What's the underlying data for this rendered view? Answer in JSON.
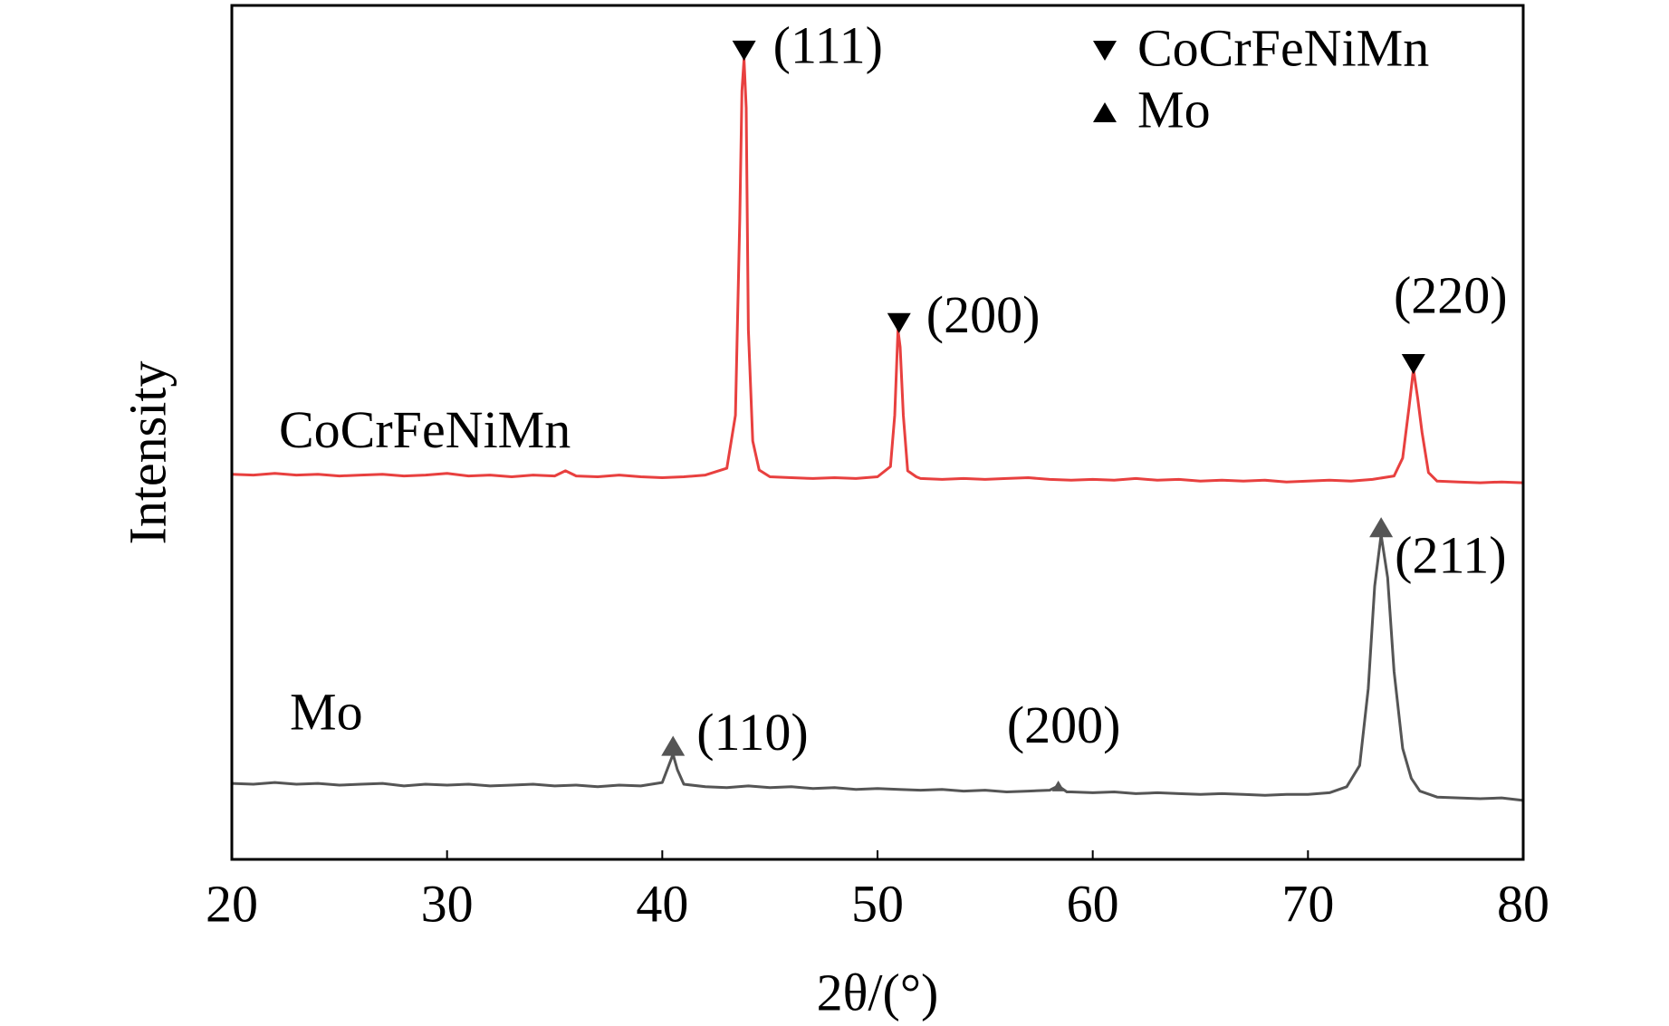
{
  "chart_data": {
    "type": "line",
    "xlabel": "2θ/(°)",
    "ylabel": "Intensity",
    "xlim": [
      20,
      80
    ],
    "xticks": [
      20,
      30,
      40,
      50,
      60,
      70,
      80
    ],
    "ylim": [
      0,
      100
    ],
    "series": [
      {
        "name": "CoCrFeNiMn",
        "color": "#e8403f",
        "marker": "down",
        "x": [
          20,
          21,
          22,
          23,
          24,
          25,
          26,
          27,
          28,
          29,
          30,
          31,
          32,
          33,
          34,
          35,
          35.5,
          36,
          37,
          38,
          39,
          40,
          41,
          42,
          43,
          43.4,
          43.6,
          43.7,
          43.8,
          43.9,
          44.0,
          44.2,
          44.5,
          45,
          46,
          47,
          48,
          49,
          50,
          50.6,
          50.8,
          50.95,
          51.05,
          51.2,
          51.4,
          51.8,
          52,
          53,
          54,
          55,
          56,
          57,
          58,
          59,
          60,
          61,
          62,
          63,
          64,
          65,
          66,
          67,
          68,
          69,
          70,
          71,
          72,
          73,
          74,
          74.4,
          74.7,
          74.9,
          75.1,
          75.3,
          75.6,
          76,
          77,
          78,
          79,
          80
        ],
        "values": [
          45.1,
          45.0,
          45.2,
          45.0,
          45.1,
          44.9,
          45.0,
          45.1,
          44.9,
          45.0,
          45.2,
          44.9,
          45.0,
          44.8,
          45.0,
          44.9,
          45.5,
          44.9,
          44.8,
          45.0,
          44.8,
          44.7,
          44.8,
          45.0,
          45.8,
          52,
          75,
          90,
          93.7,
          88,
          62,
          49,
          45.6,
          44.8,
          44.7,
          44.6,
          44.7,
          44.6,
          44.8,
          46,
          52,
          62,
          60,
          52,
          45.5,
          44.8,
          44.6,
          44.5,
          44.6,
          44.5,
          44.6,
          44.7,
          44.5,
          44.4,
          44.5,
          44.4,
          44.6,
          44.4,
          44.5,
          44.3,
          44.4,
          44.3,
          44.4,
          44.2,
          44.3,
          44.4,
          44.3,
          44.5,
          44.9,
          47,
          53,
          57.4,
          54,
          50,
          45.3,
          44.3,
          44.2,
          44.1,
          44.2,
          44.1
        ]
      },
      {
        "name": "Mo",
        "color": "#555555",
        "marker": "up",
        "x": [
          20,
          21,
          22,
          23,
          24,
          25,
          26,
          27,
          28,
          29,
          30,
          31,
          32,
          33,
          34,
          35,
          36,
          37,
          38,
          39,
          40,
          40.3,
          40.5,
          40.7,
          41,
          42,
          43,
          44,
          45,
          46,
          47,
          48,
          49,
          50,
          51,
          52,
          53,
          54,
          55,
          56,
          57,
          58,
          58.4,
          58.8,
          59,
          60,
          61,
          62,
          63,
          64,
          65,
          66,
          67,
          68,
          69,
          70,
          71,
          71.8,
          72.4,
          72.8,
          73.1,
          73.4,
          73.7,
          74,
          74.4,
          74.8,
          75.2,
          76,
          77,
          78,
          79,
          80
        ],
        "values": [
          8.9,
          8.8,
          9.0,
          8.8,
          8.9,
          8.7,
          8.8,
          8.9,
          8.6,
          8.8,
          8.7,
          8.8,
          8.6,
          8.7,
          8.8,
          8.6,
          8.7,
          8.5,
          8.7,
          8.6,
          9.0,
          11.0,
          12.3,
          10.5,
          8.8,
          8.5,
          8.4,
          8.6,
          8.4,
          8.5,
          8.3,
          8.4,
          8.2,
          8.3,
          8.2,
          8.1,
          8.2,
          8.0,
          8.1,
          7.9,
          8.0,
          8.1,
          8.6,
          7.9,
          7.9,
          7.8,
          7.9,
          7.7,
          7.8,
          7.7,
          7.6,
          7.7,
          7.6,
          7.5,
          7.6,
          7.6,
          7.8,
          8.5,
          11,
          20,
          32,
          38,
          33,
          22,
          13,
          9.5,
          8.0,
          7.3,
          7.2,
          7.1,
          7.2,
          6.9
        ]
      }
    ],
    "annotations": [
      {
        "text": "(111)",
        "x": 43.8,
        "y": 94.7,
        "series": 0
      },
      {
        "text": "(200)",
        "x": 51.0,
        "y": 62.8,
        "series": 0
      },
      {
        "text": "(220)",
        "x": 74.9,
        "y": 58.0,
        "series": 0
      },
      {
        "text": "(211)",
        "x": 73.4,
        "y": 38.9,
        "series": 1
      },
      {
        "text": "(110)",
        "x": 40.5,
        "y": 13.3,
        "series": 1
      },
      {
        "text": "(200)",
        "x": 58.4,
        "y": 8.6,
        "series": 1
      }
    ]
  }
}
